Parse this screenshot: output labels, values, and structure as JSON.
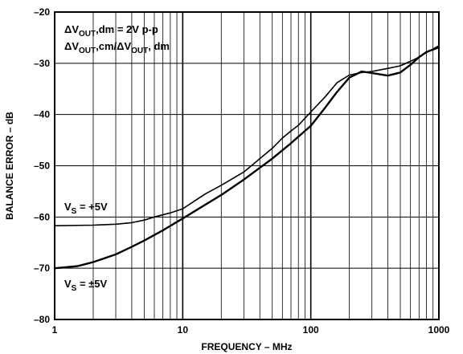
{
  "chart_data": {
    "type": "line",
    "xlabel": "FREQUENCY – MHz",
    "ylabel": "BALANCE ERROR – dB",
    "xscale": "log",
    "xlim": [
      1,
      1000
    ],
    "ylim": [
      -80,
      -20
    ],
    "x_ticks": [
      "1",
      "10",
      "100",
      "1000"
    ],
    "y_ticks": [
      "–20",
      "–30",
      "–40",
      "–50",
      "–60",
      "–70",
      "–80"
    ],
    "grid": true,
    "annotations": {
      "line1": {
        "delta": "Δ",
        "v": "V",
        "sub": "OUT",
        "rest": ",dm = 2V p-p"
      },
      "line2": {
        "delta1": "Δ",
        "v1": "V",
        "sub1": "OUT",
        "mid": ",cm/",
        "delta2": "Δ",
        "v2": "V",
        "sub2": "OUT",
        "rest": ", dm"
      },
      "label_plus5": {
        "v": "V",
        "sub": "S",
        "rest": " = +5V"
      },
      "label_pm5": {
        "v": "V",
        "sub": "S",
        "rest": " = ±5V"
      }
    },
    "series": [
      {
        "x": [
          1,
          2,
          3,
          4,
          5,
          6,
          8,
          10,
          15,
          20,
          30,
          40,
          50,
          60,
          70,
          80,
          100,
          130,
          160,
          200,
          250,
          300,
          400,
          500,
          600,
          700,
          800,
          1000
        ],
        "y": [
          -61.7,
          -61.6,
          -61.4,
          -61.1,
          -60.6,
          -60.0,
          -59.2,
          -58.4,
          -55.5,
          -53.8,
          -51.2,
          -48.6,
          -46.6,
          -44.6,
          -43.2,
          -42.1,
          -39.5,
          -36.5,
          -33.8,
          -32.3,
          -31.8,
          -31.6,
          -31.0,
          -30.5,
          -29.6,
          -28.8,
          -27.9,
          -26.6
        ]
      },
      {
        "x": [
          1,
          1.5,
          2,
          3,
          4,
          5,
          7,
          10,
          15,
          20,
          30,
          50,
          70,
          100,
          130,
          160,
          200,
          250,
          300,
          400,
          500,
          600,
          700,
          800,
          1000
        ],
        "y": [
          -70.0,
          -69.6,
          -68.8,
          -67.3,
          -65.8,
          -64.6,
          -62.6,
          -60.3,
          -57.6,
          -55.7,
          -52.7,
          -48.6,
          -45.6,
          -42.2,
          -38.6,
          -35.6,
          -32.8,
          -31.6,
          -31.9,
          -32.4,
          -31.8,
          -30.3,
          -28.8,
          -27.8,
          -26.9
        ]
      }
    ]
  }
}
